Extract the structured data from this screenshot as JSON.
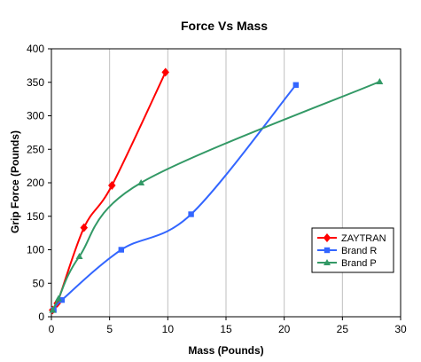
{
  "chart_data": {
    "type": "line",
    "title": "Force Vs Mass",
    "xlabel": "Mass (Pounds)",
    "ylabel": "Grip Force (Pounds)",
    "xlim": [
      0,
      30
    ],
    "ylim": [
      0,
      400
    ],
    "x_ticks": [
      0,
      5,
      10,
      15,
      20,
      25,
      30
    ],
    "y_ticks": [
      0,
      50,
      100,
      150,
      200,
      250,
      300,
      350,
      400
    ],
    "grid": "vertical",
    "legend_position": "bottom-right",
    "series": [
      {
        "name": "ZAYTRAN",
        "color": "#ff0000",
        "marker": "diamond",
        "points": [
          [
            0.1,
            10
          ],
          [
            0.5,
            20
          ],
          [
            2.8,
            133
          ],
          [
            5.2,
            196
          ],
          [
            9.8,
            365
          ]
        ]
      },
      {
        "name": "Brand R",
        "color": "#3366ff",
        "marker": "square",
        "points": [
          [
            0.2,
            10
          ],
          [
            0.9,
            25
          ],
          [
            6.0,
            100
          ],
          [
            12.0,
            153
          ],
          [
            21.0,
            346
          ]
        ]
      },
      {
        "name": "Brand P",
        "color": "#339966",
        "marker": "triangle",
        "points": [
          [
            0.1,
            10
          ],
          [
            0.6,
            27
          ],
          [
            2.4,
            90
          ],
          [
            7.7,
            200
          ],
          [
            28.2,
            351
          ]
        ]
      }
    ]
  }
}
